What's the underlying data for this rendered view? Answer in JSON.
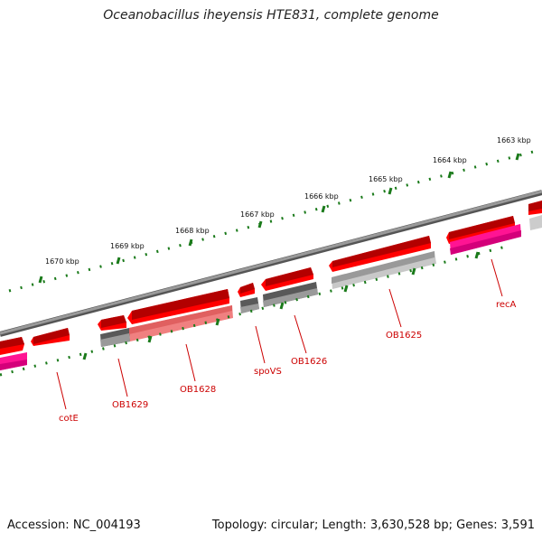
{
  "title": "Oceanobacillus iheyensis HTE831, complete genome",
  "footer": {
    "accession": "Accession: NC_004193",
    "summary": "Topology: circular; Length: 3,630,528 bp; Genes: 3,591"
  },
  "colors": {
    "forward_gene": "#ff0000",
    "forward_gene_dark": "#b30000",
    "rna_or_other": "#ff1493",
    "hypothetical_dark": "#595959",
    "hypothetical_light": "#c8c8c8",
    "partial_red": "#f08080",
    "backbone": "#7a7a7a",
    "scale_ticks": "#1a7a1a",
    "gene_label": "#cc0000"
  },
  "scale_labels": [
    "1663 kbp",
    "1664 kbp",
    "1665 kbp",
    "1666 kbp",
    "1667 kbp",
    "1668 kbp",
    "1669 kbp",
    "1670 kbp"
  ],
  "gene_labels": [
    "recA",
    "OB1625",
    "OB1626",
    "spoVS",
    "OB1628",
    "OB1629",
    "cotE"
  ]
}
